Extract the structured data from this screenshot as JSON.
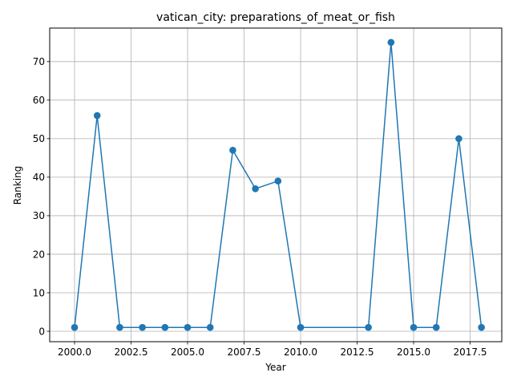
{
  "chart_data": {
    "type": "line",
    "title": "vatican_city: preparations_of_meat_or_fish",
    "xlabel": "Year",
    "ylabel": "Ranking",
    "xlim": [
      1998.9,
      2018.9
    ],
    "ylim": [
      -2.7,
      78.7
    ],
    "xticks": [
      2000,
      2002.5,
      2005,
      2007.5,
      2010,
      2012.5,
      2015,
      2017.5
    ],
    "xtick_labels": [
      "2000.0",
      "2002.5",
      "2005.0",
      "2007.5",
      "2010.0",
      "2012.5",
      "2015.0",
      "2017.5"
    ],
    "yticks": [
      0,
      10,
      20,
      30,
      40,
      50,
      60,
      70
    ],
    "ytick_labels": [
      "0",
      "10",
      "20",
      "30",
      "40",
      "50",
      "60",
      "70"
    ],
    "grid": true,
    "series": [
      {
        "color": "#1f77b4",
        "x": [
          2000,
          2001,
          2002,
          2003,
          2004,
          2005,
          2006,
          2007,
          2008,
          2009,
          2010,
          2013,
          2014,
          2015,
          2016,
          2017,
          2018
        ],
        "y": [
          1,
          56,
          1,
          1,
          1,
          1,
          1,
          47,
          37,
          39,
          1,
          1,
          75,
          1,
          1,
          50,
          1
        ]
      }
    ]
  }
}
